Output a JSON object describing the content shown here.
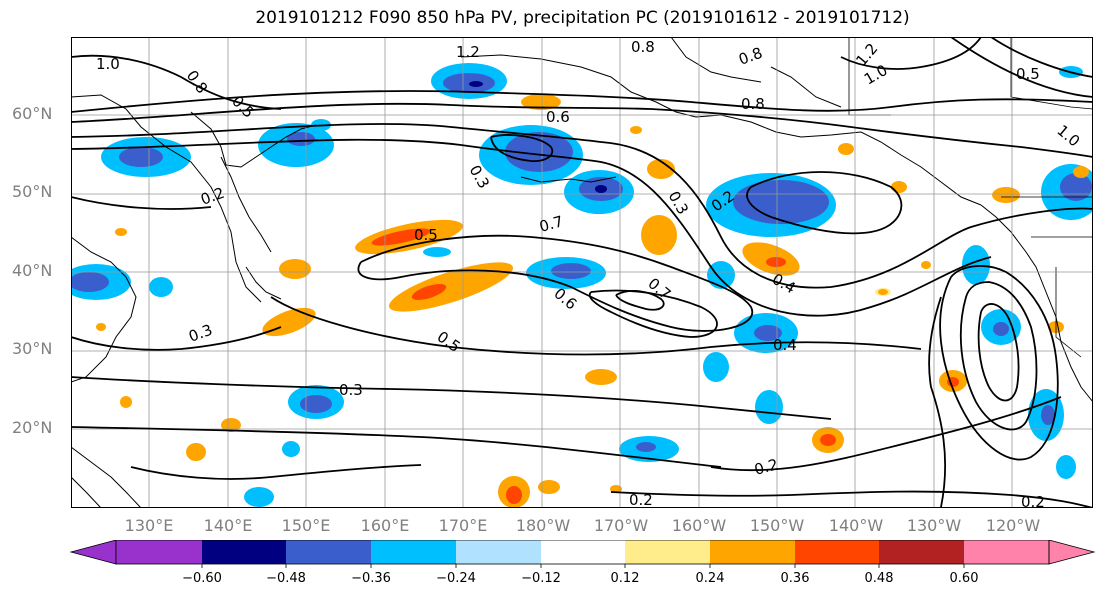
{
  "title": "2019101212 F090 850 hPa PV, precipitation PC (2019101612 - 2019101712)",
  "lat_labels": [
    "60°N",
    "50°N",
    "40°N",
    "30°N",
    "20°N"
  ],
  "lon_labels": [
    "130°E",
    "140°E",
    "150°E",
    "160°E",
    "170°E",
    "180°W",
    "170°W",
    "160°W",
    "150°W",
    "140°W",
    "130°W",
    "120°W"
  ],
  "colorbar": {
    "ticks": [
      "−0.60",
      "−0.48",
      "−0.36",
      "−0.24",
      "−0.12",
      "0.12",
      "0.24",
      "0.36",
      "0.48",
      "0.60"
    ],
    "colors": [
      "#9932cc",
      "#000080",
      "#3a5fcd",
      "#00bfff",
      "#b0e2ff",
      "#ffffff",
      "#ffec8b",
      "#ffa500",
      "#ff4500",
      "#b22222",
      "#ff82ab"
    ]
  },
  "contour_labels": [
    "1.0",
    "0.8",
    "0.5",
    "1.2",
    "0.8",
    "0.8",
    "1.2",
    "1.0",
    "0.5",
    "1.0",
    "0.6",
    "0.8",
    "0.3",
    "0.2",
    "0.5",
    "0.7",
    "0.3",
    "0.2",
    "0.6",
    "0.7",
    "0.4",
    "0.3",
    "0.5",
    "0.4",
    "0.3",
    "0.2",
    "0.2",
    "0.2"
  ]
}
